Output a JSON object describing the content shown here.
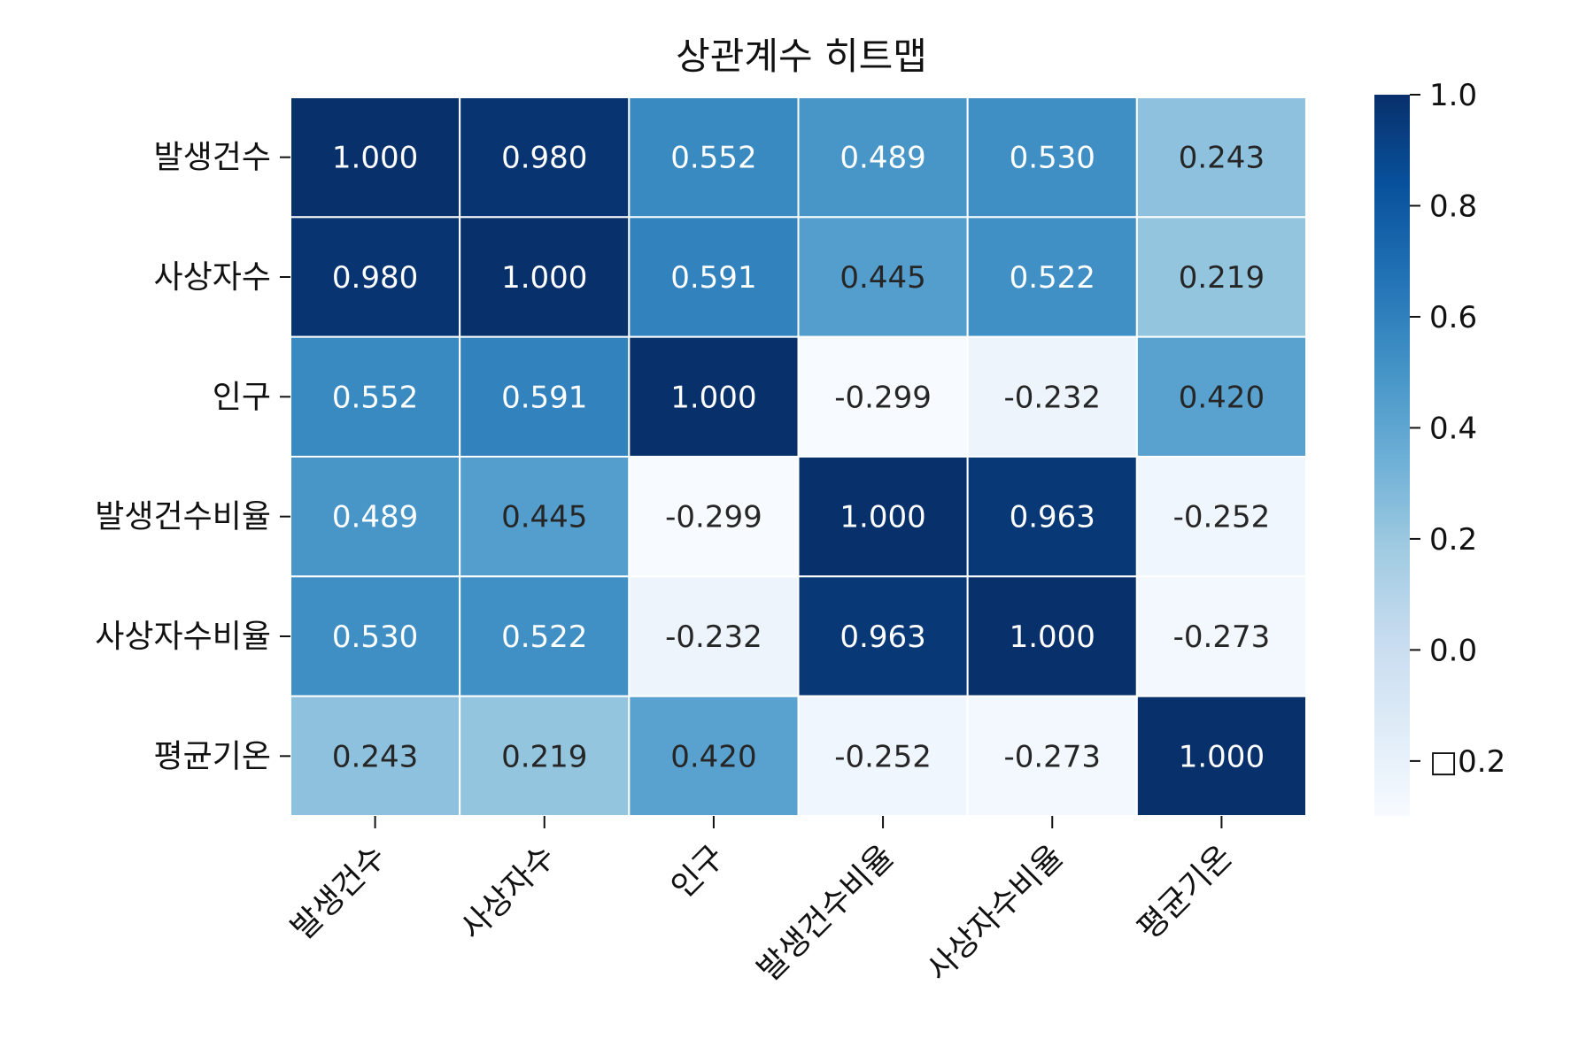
{
  "chart_data": {
    "type": "heatmap",
    "title": "상관계수 히트맵",
    "rows": [
      "발생건수",
      "사상자수",
      "인구",
      "발생건수비율",
      "사상자수비율",
      "평균기온"
    ],
    "columns": [
      "발생건수",
      "사상자수",
      "인구",
      "발생건수비율",
      "사상자수비율",
      "평균기온"
    ],
    "values": [
      [
        1.0,
        0.98,
        0.552,
        0.489,
        0.53,
        0.243
      ],
      [
        0.98,
        1.0,
        0.591,
        0.445,
        0.522,
        0.219
      ],
      [
        0.552,
        0.591,
        1.0,
        -0.299,
        -0.232,
        0.42
      ],
      [
        0.489,
        0.445,
        -0.299,
        1.0,
        0.963,
        -0.252
      ],
      [
        0.53,
        0.522,
        -0.232,
        0.963,
        1.0,
        -0.273
      ],
      [
        0.243,
        0.219,
        0.42,
        -0.252,
        -0.273,
        1.0
      ]
    ],
    "cell_labels": [
      [
        "1.000",
        "0.980",
        "0.552",
        "0.489",
        "0.530",
        "0.243"
      ],
      [
        "0.980",
        "1.000",
        "0.591",
        "0.445",
        "0.522",
        "0.219"
      ],
      [
        "0.552",
        "0.591",
        "1.000",
        "-0.299",
        "-0.232",
        "0.420"
      ],
      [
        "0.489",
        "0.445",
        "-0.299",
        "1.000",
        "0.963",
        "-0.252"
      ],
      [
        "0.530",
        "0.522",
        "-0.232",
        "0.963",
        "1.000",
        "-0.273"
      ],
      [
        "0.243",
        "0.219",
        "0.420",
        "-0.252",
        "-0.273",
        "1.000"
      ]
    ],
    "colormap": "Blues",
    "colormap_stops": [
      "#f7fbff",
      "#deebf7",
      "#c6dbef",
      "#9ecae1",
      "#6baed6",
      "#4292c6",
      "#2171b5",
      "#08519c",
      "#08306b"
    ],
    "color_range": [
      -0.299,
      1.0
    ],
    "colorbar": {
      "ticks": [
        1.0,
        0.8,
        0.6,
        0.4,
        0.2,
        0.0,
        -0.2
      ],
      "tick_labels": [
        "1.0",
        "0.8",
        "0.6",
        "0.4",
        "0.2",
        "0.0",
        "□0.2"
      ]
    },
    "xtick_rotation_deg": 45
  }
}
